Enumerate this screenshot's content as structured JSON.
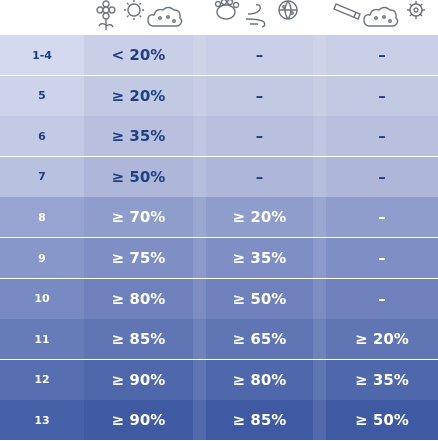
{
  "header": {
    "icons": {
      "col1": [
        "flower-icon",
        "sun-icon",
        "cloud-icon"
      ],
      "col2": [
        "paw-icon",
        "wind-icon",
        "globe-icon"
      ],
      "col3": [
        "pencil-icon",
        "cloud-icon",
        "gear-icon"
      ]
    }
  },
  "rows": [
    {
      "level": "1-4",
      "c1": "< 20%",
      "c2": "–",
      "c3": "–",
      "bg": "#c9cfe6",
      "label_bg": "#d3d9ee",
      "text": "#1f3f83"
    },
    {
      "level": "5",
      "c1": "≥ 20%",
      "c2": "–",
      "c3": "–",
      "bg": "#c2c9e3",
      "label_bg": "#cdd3ea",
      "text": "#1f3f83"
    },
    {
      "level": "6",
      "c1": "≥ 35%",
      "c2": "–",
      "c3": "–",
      "bg": "#b8c0de",
      "label_bg": "#c3cae5",
      "text": "#1f3f83"
    },
    {
      "level": "7",
      "c1": "≥ 50%",
      "c2": "–",
      "c3": "–",
      "bg": "#aeb7da",
      "label_bg": "#b9c1e0",
      "text": "#1f3f83"
    },
    {
      "level": "8",
      "c1": "≥ 70%",
      "c2": "≥ 20%",
      "c3": "–",
      "bg": "#8f9dcc",
      "label_bg": "#97a4d1",
      "text": "#ffffff"
    },
    {
      "level": "9",
      "c1": "≥ 75%",
      "c2": "≥ 35%",
      "c3": "–",
      "bg": "#7f8fc6",
      "label_bg": "#8797ca",
      "text": "#ffffff"
    },
    {
      "level": "10",
      "c1": "≥ 80%",
      "c2": "≥ 50%",
      "c3": "–",
      "bg": "#6f81bd",
      "label_bg": "#778ac2",
      "text": "#ffffff"
    },
    {
      "level": "11",
      "c1": "≥ 85%",
      "c2": "≥ 65%",
      "c3": "≥ 20%",
      "bg": "#5f75b4",
      "label_bg": "#667cb9",
      "text": "#ffffff"
    },
    {
      "level": "12",
      "c1": "≥ 90%",
      "c2": "≥ 80%",
      "c3": "≥ 35%",
      "bg": "#4f67ab",
      "label_bg": "#566eb0",
      "text": "#ffffff"
    },
    {
      "level": "13",
      "c1": "≥ 90%",
      "c2": "≥ 85%",
      "c3": "≥ 50%",
      "bg": "#3f5aa3",
      "label_bg": "#4661a8",
      "text": "#ffffff"
    }
  ]
}
